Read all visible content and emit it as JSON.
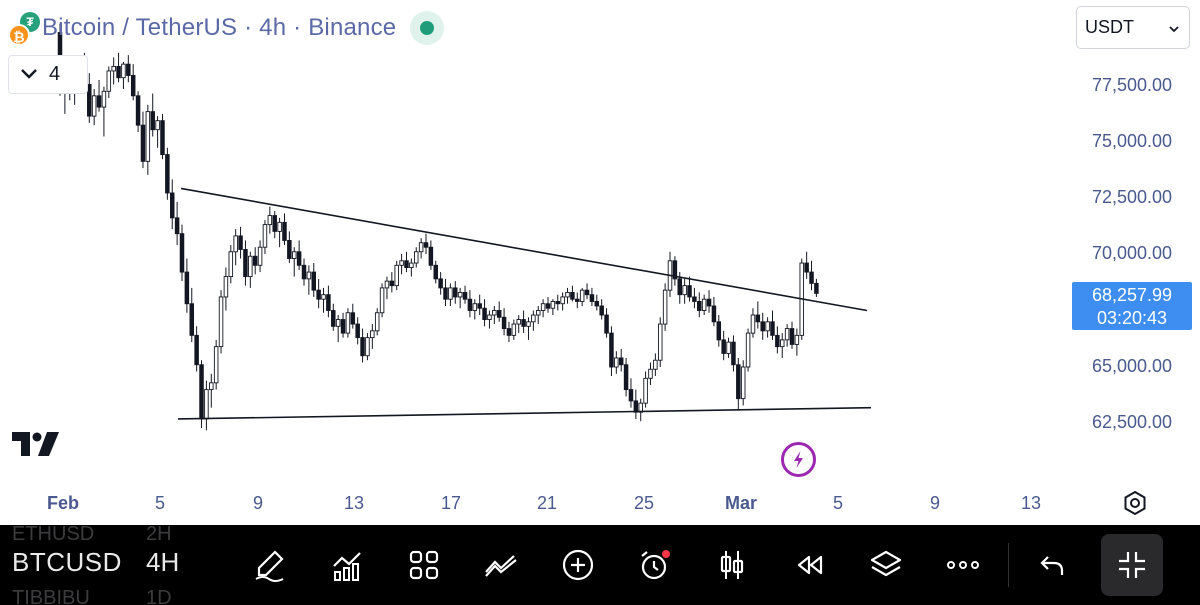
{
  "header": {
    "title": "Bitcoin / TetherUS · 4h · Binance",
    "base_coin_glyph": "₿",
    "quote_coin_glyph": "₮",
    "status": "market-open"
  },
  "indicator_toggle": {
    "count": "4"
  },
  "currency": {
    "selected": "USDT"
  },
  "price_axis": {
    "labels": [
      "77,500.00",
      "75,000.00",
      "72,500.00",
      "70,000.00",
      "65,000.00",
      "62,500.00"
    ],
    "current_price": "68,257.99",
    "countdown": "03:20:43",
    "current_price_color": "#3d8ef0"
  },
  "time_axis": {
    "labels": [
      {
        "text": "Feb",
        "bold": true
      },
      {
        "text": "5",
        "bold": false
      },
      {
        "text": "9",
        "bold": false
      },
      {
        "text": "13",
        "bold": false
      },
      {
        "text": "17",
        "bold": false
      },
      {
        "text": "21",
        "bold": false
      },
      {
        "text": "25",
        "bold": false
      },
      {
        "text": "Mar",
        "bold": true
      },
      {
        "text": "5",
        "bold": false
      },
      {
        "text": "9",
        "bold": false
      },
      {
        "text": "13",
        "bold": false
      }
    ]
  },
  "chart_data": {
    "type": "candlestick",
    "symbol": "BTCUSDT",
    "interval": "4h",
    "y_range": [
      60000,
      80000
    ],
    "up_color": "#ffffff",
    "down_color": "#131722",
    "candles_ohlc": [
      [
        79800,
        80200,
        77000,
        77600
      ],
      [
        77600,
        78400,
        76200,
        78000
      ],
      [
        78000,
        78600,
        76800,
        77200
      ],
      [
        77200,
        78200,
        76600,
        77900
      ],
      [
        77900,
        78800,
        77400,
        78400
      ],
      [
        78400,
        78900,
        77300,
        77500
      ],
      [
        77500,
        78000,
        75800,
        76100
      ],
      [
        76100,
        77300,
        75700,
        77000
      ],
      [
        77000,
        77700,
        76300,
        76500
      ],
      [
        76500,
        77400,
        75200,
        77200
      ],
      [
        77200,
        78300,
        76900,
        78100
      ],
      [
        78100,
        78700,
        77500,
        78300
      ],
      [
        78300,
        78900,
        77600,
        77800
      ],
      [
        77800,
        78500,
        77300,
        78400
      ],
      [
        78400,
        78800,
        77600,
        77900
      ],
      [
        77900,
        78400,
        76800,
        77000
      ],
      [
        77000,
        77200,
        75400,
        75700
      ],
      [
        75700,
        76300,
        73800,
        74100
      ],
      [
        74100,
        76600,
        73500,
        76300
      ],
      [
        76300,
        77100,
        75200,
        75500
      ],
      [
        75500,
        76100,
        74700,
        75900
      ],
      [
        75900,
        76200,
        74200,
        74400
      ],
      [
        74400,
        74700,
        72400,
        72700
      ],
      [
        72700,
        73300,
        71100,
        71600
      ],
      [
        71600,
        72300,
        70400,
        70900
      ],
      [
        70900,
        71300,
        68800,
        69200
      ],
      [
        69200,
        69800,
        67400,
        67800
      ],
      [
        67800,
        68500,
        66100,
        66400
      ],
      [
        66400,
        66800,
        64800,
        65100
      ],
      [
        65100,
        65300,
        62300,
        62700
      ],
      [
        62700,
        64400,
        62200,
        64000
      ],
      [
        64000,
        64700,
        63200,
        64300
      ],
      [
        64300,
        66200,
        64000,
        65900
      ],
      [
        65900,
        68400,
        65600,
        68100
      ],
      [
        68100,
        69400,
        67500,
        69000
      ],
      [
        69000,
        70400,
        68700,
        70100
      ],
      [
        70100,
        71100,
        69500,
        70800
      ],
      [
        70800,
        71200,
        69800,
        70200
      ],
      [
        70200,
        70600,
        68600,
        69000
      ],
      [
        69000,
        70100,
        68500,
        69900
      ],
      [
        69900,
        70300,
        69100,
        69500
      ],
      [
        69500,
        70600,
        69200,
        70300
      ],
      [
        70300,
        71500,
        70000,
        71300
      ],
      [
        71300,
        72100,
        70900,
        71700
      ],
      [
        71700,
        71900,
        70700,
        71000
      ],
      [
        71000,
        71600,
        70300,
        71400
      ],
      [
        71400,
        71800,
        70400,
        70600
      ],
      [
        70600,
        71000,
        69600,
        69800
      ],
      [
        69800,
        70300,
        69000,
        70100
      ],
      [
        70100,
        70600,
        69300,
        69500
      ],
      [
        69500,
        69800,
        68600,
        68900
      ],
      [
        68900,
        69500,
        68200,
        69200
      ],
      [
        69200,
        69600,
        68100,
        68400
      ],
      [
        68400,
        68900,
        67600,
        68000
      ],
      [
        68000,
        68500,
        67400,
        68200
      ],
      [
        68200,
        68600,
        67200,
        67500
      ],
      [
        67500,
        67800,
        66600,
        66800
      ],
      [
        66800,
        67300,
        66100,
        67100
      ],
      [
        67100,
        67400,
        66300,
        66500
      ],
      [
        66500,
        67600,
        66300,
        67400
      ],
      [
        67400,
        67800,
        66700,
        66900
      ],
      [
        66900,
        67200,
        66000,
        66300
      ],
      [
        66300,
        66700,
        65200,
        65500
      ],
      [
        65500,
        66500,
        65300,
        66300
      ],
      [
        66300,
        66900,
        65800,
        66600
      ],
      [
        66600,
        67600,
        66400,
        67400
      ],
      [
        67400,
        68700,
        67200,
        68500
      ],
      [
        68500,
        69000,
        68000,
        68800
      ],
      [
        68800,
        69200,
        68300,
        68600
      ],
      [
        68600,
        69700,
        68400,
        69500
      ],
      [
        69500,
        70000,
        69100,
        69700
      ],
      [
        69700,
        70100,
        69200,
        69400
      ],
      [
        69400,
        69800,
        69000,
        69600
      ],
      [
        69600,
        70300,
        69400,
        70100
      ],
      [
        70100,
        70700,
        69800,
        70500
      ],
      [
        70500,
        70900,
        70000,
        70300
      ],
      [
        70300,
        70600,
        69300,
        69500
      ],
      [
        69500,
        69700,
        68700,
        68900
      ],
      [
        68900,
        69200,
        68200,
        68500
      ],
      [
        68500,
        68900,
        67700,
        68000
      ],
      [
        68000,
        68700,
        67700,
        68500
      ],
      [
        68500,
        68800,
        67800,
        68100
      ],
      [
        68100,
        68500,
        67600,
        68300
      ],
      [
        68300,
        68600,
        67800,
        68000
      ],
      [
        68000,
        68400,
        67200,
        67500
      ],
      [
        67500,
        68000,
        67100,
        67800
      ],
      [
        67800,
        68200,
        67300,
        67600
      ],
      [
        67600,
        68000,
        66800,
        67100
      ],
      [
        67100,
        67500,
        66700,
        67300
      ],
      [
        67300,
        67700,
        66900,
        67500
      ],
      [
        67500,
        67900,
        67000,
        67200
      ],
      [
        67200,
        67600,
        66400,
        66700
      ],
      [
        66700,
        67000,
        66100,
        66400
      ],
      [
        66400,
        67100,
        66200,
        66900
      ],
      [
        66900,
        67300,
        66500,
        67100
      ],
      [
        67100,
        67500,
        66500,
        66800
      ],
      [
        66800,
        67200,
        66200,
        67000
      ],
      [
        67000,
        67500,
        66600,
        67300
      ],
      [
        67300,
        67700,
        66900,
        67500
      ],
      [
        67500,
        68000,
        67200,
        67800
      ],
      [
        67800,
        68100,
        67400,
        67600
      ],
      [
        67600,
        68000,
        67300,
        67900
      ],
      [
        67900,
        68200,
        67500,
        67800
      ],
      [
        67800,
        68300,
        67500,
        68100
      ],
      [
        68100,
        68500,
        67800,
        68300
      ],
      [
        68300,
        68600,
        67900,
        68000
      ],
      [
        68000,
        68300,
        67600,
        67900
      ],
      [
        67900,
        68500,
        67700,
        68400
      ],
      [
        68400,
        68700,
        68000,
        68200
      ],
      [
        68200,
        68500,
        67700,
        67900
      ],
      [
        67900,
        68200,
        67500,
        67700
      ],
      [
        67700,
        68000,
        67100,
        67300
      ],
      [
        67300,
        67600,
        66300,
        66500
      ],
      [
        66500,
        66800,
        64600,
        65000
      ],
      [
        65000,
        65700,
        64700,
        65400
      ],
      [
        65400,
        65800,
        64800,
        65100
      ],
      [
        65100,
        65400,
        63700,
        64000
      ],
      [
        64000,
        64500,
        63200,
        63500
      ],
      [
        63500,
        64000,
        62700,
        63000
      ],
      [
        63000,
        63600,
        62600,
        63400
      ],
      [
        63400,
        64800,
        63200,
        64500
      ],
      [
        64500,
        65200,
        64200,
        64900
      ],
      [
        64900,
        65600,
        64600,
        65300
      ],
      [
        65300,
        67200,
        65000,
        66900
      ],
      [
        66900,
        68700,
        66600,
        68400
      ],
      [
        68400,
        70100,
        68100,
        69700
      ],
      [
        69700,
        69900,
        68600,
        68900
      ],
      [
        68900,
        69200,
        67800,
        68200
      ],
      [
        68200,
        68900,
        67800,
        68600
      ],
      [
        68600,
        69000,
        67900,
        68100
      ],
      [
        68100,
        68500,
        67600,
        67900
      ],
      [
        67900,
        68300,
        67200,
        67500
      ],
      [
        67500,
        68200,
        67300,
        68000
      ],
      [
        68000,
        68400,
        67400,
        67700
      ],
      [
        67700,
        68100,
        66800,
        67000
      ],
      [
        67000,
        67300,
        65900,
        66200
      ],
      [
        66200,
        66600,
        65300,
        65600
      ],
      [
        65600,
        66300,
        65400,
        66100
      ],
      [
        66100,
        66400,
        64800,
        65100
      ],
      [
        65100,
        65400,
        63100,
        63600
      ],
      [
        63600,
        65300,
        63300,
        65000
      ],
      [
        65000,
        66700,
        64800,
        66500
      ],
      [
        66500,
        67600,
        66300,
        67300
      ],
      [
        67300,
        67900,
        66700,
        67000
      ],
      [
        67000,
        67400,
        66200,
        66600
      ],
      [
        66600,
        67200,
        66300,
        67000
      ],
      [
        67000,
        67500,
        66200,
        66400
      ],
      [
        66400,
        66800,
        65600,
        65900
      ],
      [
        65900,
        66500,
        65400,
        66200
      ],
      [
        66200,
        66900,
        65900,
        66700
      ],
      [
        66700,
        67000,
        65800,
        66000
      ],
      [
        66000,
        66700,
        65500,
        66400
      ],
      [
        66400,
        69800,
        66200,
        69600
      ],
      [
        69600,
        70100,
        68900,
        69200
      ],
      [
        69200,
        69700,
        68400,
        68700
      ],
      [
        68700,
        68900,
        68100,
        68258
      ]
    ],
    "trendlines": [
      {
        "name": "upper-resistance",
        "from": [
          7,
          72900
        ],
        "to": [
          62,
          67500
        ]
      },
      {
        "name": "lower-support",
        "from": [
          7,
          62700
        ],
        "to": [
          62,
          63200
        ]
      }
    ]
  },
  "toolbar": {
    "symbol": "BTCUSD",
    "interval": "4H",
    "ghost_top_symbol": "ETHUSD",
    "ghost_top_interval": "2H",
    "ghost_bottom_symbol": "TIBBIBU",
    "ghost_bottom_interval": "1D"
  }
}
